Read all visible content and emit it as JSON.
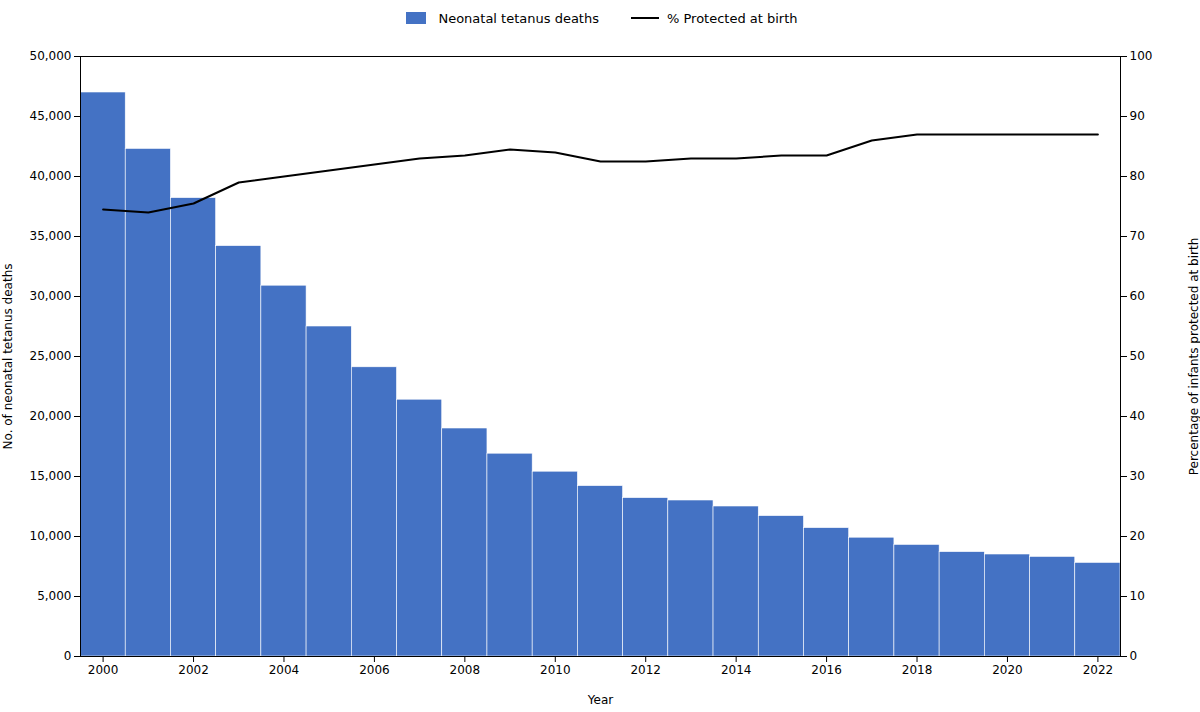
{
  "chart_data": {
    "type": "bar",
    "xlabel": "Year",
    "ylabel": "No. of neonatal tetanus deaths",
    "y2label": "Percentage of infants protected at birth",
    "x": [
      2000,
      2001,
      2002,
      2003,
      2004,
      2005,
      2006,
      2007,
      2008,
      2009,
      2010,
      2011,
      2012,
      2013,
      2014,
      2015,
      2016,
      2017,
      2018,
      2019,
      2020,
      2021,
      2022
    ],
    "series": [
      {
        "name": "Neonatal tetanus deaths",
        "type": "bar",
        "color": "#4472C4",
        "values": [
          47000,
          42300,
          38200,
          34200,
          30900,
          27500,
          24100,
          21400,
          19000,
          16900,
          15400,
          14200,
          13200,
          13000,
          12500,
          11700,
          10700,
          9900,
          9300,
          8700,
          8500,
          8300,
          7800
        ]
      },
      {
        "name": "% Protected at birth",
        "type": "line",
        "color": "#000000",
        "axis": "y2",
        "values": [
          74.5,
          74.0,
          75.5,
          79.0,
          80.0,
          81.0,
          82.0,
          83.0,
          83.5,
          84.5,
          84.0,
          82.5,
          82.5,
          83.0,
          83.0,
          83.5,
          83.5,
          86.0,
          87.0,
          87.0,
          87.0,
          87.0,
          87.0
        ]
      }
    ],
    "xlim": [
      1999.5,
      2022.5
    ],
    "xticks": [
      2000,
      2002,
      2004,
      2006,
      2008,
      2010,
      2012,
      2014,
      2016,
      2018,
      2020,
      2022
    ],
    "ylim": [
      0,
      50000
    ],
    "yticks": [
      0,
      {
        "value": 5000,
        "label": "5,000"
      },
      {
        "value": 10000,
        "label": "10,000"
      },
      {
        "value": 15000,
        "label": "15,000"
      },
      {
        "value": 20000,
        "label": "20,000"
      },
      {
        "value": 25000,
        "label": "25,000"
      },
      {
        "value": 30000,
        "label": "30,000"
      },
      {
        "value": 35000,
        "label": "35,000"
      },
      {
        "value": 40000,
        "label": "40,000"
      },
      {
        "value": 45000,
        "label": "45,000"
      },
      {
        "value": 50000,
        "label": "50,000"
      }
    ],
    "y2lim": [
      0,
      100
    ],
    "y2ticks": [
      0,
      10,
      20,
      30,
      40,
      50,
      60,
      70,
      80,
      90,
      100
    ],
    "grid": false,
    "legend": "top"
  }
}
